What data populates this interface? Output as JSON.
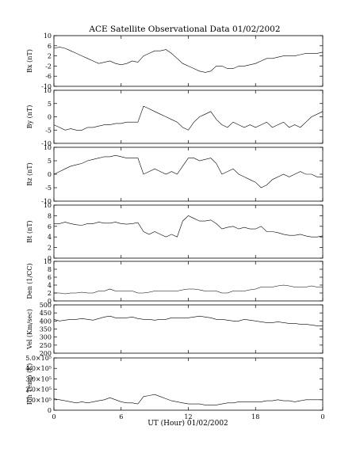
{
  "chart_data": {
    "type": "line",
    "title": "ACE Satellite Observational Data   01/02/2002",
    "xlabel": "UT (Hour)   01/02/2002",
    "x_ticks": [
      "0",
      "6",
      "12",
      "18",
      "0"
    ],
    "xlim": [
      0,
      24
    ],
    "panels": [
      {
        "ylabel": "Bx (nT)",
        "ylim": [
          -10,
          10
        ],
        "y_ticks": [
          "10",
          "6",
          "2",
          "-2",
          "-6",
          "-10"
        ],
        "x": [
          0,
          0.5,
          1,
          1.5,
          2,
          2.5,
          3,
          3.5,
          4,
          4.5,
          5,
          5.5,
          6,
          6.5,
          7,
          7.5,
          8,
          8.5,
          9,
          9.5,
          10,
          10.5,
          11,
          11.5,
          12,
          12.5,
          13,
          13.5,
          14,
          14.5,
          15,
          15.5,
          16,
          16.5,
          17,
          17.5,
          18,
          18.5,
          19,
          19.5,
          20,
          20.5,
          21,
          21.5,
          22,
          22.5,
          23,
          23.5,
          24
        ],
        "values": [
          5,
          5.5,
          5,
          4,
          3,
          2,
          1,
          0,
          -1,
          -0.5,
          0,
          -1,
          -1.5,
          -1,
          0,
          -0.5,
          2,
          3,
          4,
          4,
          4.5,
          3,
          1,
          -1,
          -2,
          -3,
          -4,
          -4.5,
          -4,
          -2,
          -2,
          -3,
          -3,
          -2,
          -2,
          -1.5,
          -1,
          0,
          1,
          1,
          1.5,
          2,
          2,
          2,
          2.5,
          3,
          3,
          3,
          3.5
        ]
      },
      {
        "ylabel": "By (nT)",
        "ylim": [
          -10,
          10
        ],
        "y_ticks": [
          "10",
          "5",
          "0",
          "-5",
          "-10"
        ],
        "x": [
          0,
          0.5,
          1,
          1.5,
          2,
          2.5,
          3,
          3.5,
          4,
          4.5,
          5,
          5.5,
          6,
          6.5,
          7,
          7.5,
          8,
          8.5,
          9,
          9.5,
          10,
          10.5,
          11,
          11.5,
          12,
          12.5,
          13,
          13.5,
          14,
          14.5,
          15,
          15.5,
          16,
          16.5,
          17,
          17.5,
          18,
          18.5,
          19,
          19.5,
          20,
          20.5,
          21,
          21.5,
          22,
          22.5,
          23,
          23.5,
          24
        ],
        "values": [
          -3,
          -4,
          -5,
          -4.5,
          -5,
          -5,
          -4,
          -4,
          -3.5,
          -3,
          -3,
          -2.5,
          -2.5,
          -2,
          -2,
          -2,
          4,
          3,
          2,
          1,
          0,
          -1,
          -2,
          -4,
          -5,
          -2,
          0,
          1,
          2,
          -1,
          -3,
          -4,
          -2,
          -3,
          -4,
          -3,
          -4,
          -3,
          -2,
          -4,
          -3,
          -2,
          -4,
          -3,
          -4,
          -2,
          0,
          1,
          2
        ]
      },
      {
        "ylabel": "Bz (nT)",
        "ylim": [
          -10,
          10
        ],
        "y_ticks": [
          "10",
          "5",
          "0",
          "-5",
          "-10"
        ],
        "x": [
          0,
          0.5,
          1,
          1.5,
          2,
          2.5,
          3,
          3.5,
          4,
          4.5,
          5,
          5.5,
          6,
          6.5,
          7,
          7.5,
          8,
          8.5,
          9,
          9.5,
          10,
          10.5,
          11,
          11.5,
          12,
          12.5,
          13,
          13.5,
          14,
          14.5,
          15,
          15.5,
          16,
          16.5,
          17,
          17.5,
          18,
          18.5,
          19,
          19.5,
          20,
          20.5,
          21,
          21.5,
          22,
          22.5,
          23,
          23.5,
          24
        ],
        "values": [
          0,
          1,
          2,
          3,
          3.5,
          4,
          5,
          5.5,
          6,
          6.5,
          6.5,
          7,
          6.5,
          6,
          6,
          6,
          0,
          1,
          2,
          1,
          0,
          1,
          0,
          3,
          6,
          6,
          5,
          5.5,
          6,
          4,
          0,
          1,
          2,
          0,
          -1,
          -2,
          -3,
          -5,
          -4,
          -2,
          -1,
          0,
          -1,
          0,
          1,
          0,
          0,
          -1,
          -1
        ]
      },
      {
        "ylabel": "Bt (nT)",
        "ylim": [
          0,
          10
        ],
        "y_ticks": [
          "10",
          "8",
          "6",
          "4",
          "2",
          "0"
        ],
        "x": [
          0,
          0.5,
          1,
          1.5,
          2,
          2.5,
          3,
          3.5,
          4,
          4.5,
          5,
          5.5,
          6,
          6.5,
          7,
          7.5,
          8,
          8.5,
          9,
          9.5,
          10,
          10.5,
          11,
          11.5,
          12,
          12.5,
          13,
          13.5,
          14,
          14.5,
          15,
          15.5,
          16,
          16.5,
          17,
          17.5,
          18,
          18.5,
          19,
          19.5,
          20,
          20.5,
          21,
          21.5,
          22,
          22.5,
          23,
          23.5,
          24
        ],
        "values": [
          6.5,
          6.5,
          6.8,
          6.5,
          6.3,
          6.2,
          6.5,
          6.5,
          6.8,
          6.6,
          6.6,
          6.8,
          6.5,
          6.4,
          6.5,
          6.7,
          5,
          4.5,
          5,
          4.5,
          4,
          4.5,
          4,
          7,
          8,
          7.5,
          7,
          7,
          7.2,
          6.5,
          5.5,
          5.8,
          6,
          5.5,
          5.8,
          5.5,
          5.5,
          6,
          5,
          5,
          4.8,
          4.5,
          4.3,
          4.3,
          4.5,
          4.2,
          4,
          4,
          4.2
        ]
      },
      {
        "ylabel": "Den (1/CC)",
        "ylim": [
          0,
          10
        ],
        "y_ticks": [
          "10",
          "8",
          "6",
          "4",
          "2",
          "0"
        ],
        "x": [
          0,
          0.5,
          1,
          1.5,
          2,
          2.5,
          3,
          3.5,
          4,
          4.5,
          5,
          5.5,
          6,
          6.5,
          7,
          7.5,
          8,
          8.5,
          9,
          9.5,
          10,
          10.5,
          11,
          11.5,
          12,
          12.5,
          13,
          13.5,
          14,
          14.5,
          15,
          15.5,
          16,
          16.5,
          17,
          17.5,
          18,
          18.5,
          19,
          19.5,
          20,
          20.5,
          21,
          21.5,
          22,
          22.5,
          23,
          23.5,
          24
        ],
        "values": [
          2,
          2,
          1.8,
          2,
          2,
          2.2,
          2,
          2,
          2.5,
          2.5,
          3,
          2.5,
          2.5,
          2.5,
          2.5,
          2,
          2,
          2.2,
          2.5,
          2.5,
          2.5,
          2.5,
          2.5,
          2.8,
          3,
          3,
          2.8,
          2.5,
          2.5,
          2.5,
          2,
          2,
          2.5,
          2.5,
          2.5,
          2.8,
          3,
          3.5,
          3.5,
          3.5,
          3.8,
          4,
          3.8,
          3.5,
          3.5,
          3.5,
          3.8,
          3.5,
          3.5
        ]
      },
      {
        "ylabel": "Vel (Km/sec)",
        "ylim": [
          200,
          500
        ],
        "y_ticks": [
          "500",
          "450",
          "400",
          "350",
          "300",
          "250",
          "200"
        ],
        "x": [
          0,
          0.5,
          1,
          1.5,
          2,
          2.5,
          3,
          3.5,
          4,
          4.5,
          5,
          5.5,
          6,
          6.5,
          7,
          7.5,
          8,
          8.5,
          9,
          9.5,
          10,
          10.5,
          11,
          11.5,
          12,
          12.5,
          13,
          13.5,
          14,
          14.5,
          15,
          15.5,
          16,
          16.5,
          17,
          17.5,
          18,
          18.5,
          19,
          19.5,
          20,
          20.5,
          21,
          21.5,
          22,
          22.5,
          23,
          23.5,
          24
        ],
        "values": [
          410,
          400,
          405,
          410,
          410,
          415,
          410,
          405,
          415,
          425,
          430,
          420,
          420,
          420,
          425,
          415,
          410,
          410,
          405,
          410,
          410,
          420,
          420,
          420,
          420,
          425,
          430,
          425,
          420,
          410,
          410,
          405,
          400,
          400,
          410,
          405,
          400,
          395,
          390,
          390,
          395,
          390,
          385,
          385,
          380,
          380,
          375,
          370,
          370
        ]
      },
      {
        "ylabel": "Ion Temp (K)",
        "ylim": [
          0,
          500000
        ],
        "y_ticks": [
          "5.0×10⁵",
          "4.0×10⁵",
          "3.0×10⁵",
          "2.0×10⁵",
          "1.0×10⁵",
          "0"
        ],
        "x": [
          0,
          0.5,
          1,
          1.5,
          2,
          2.5,
          3,
          3.5,
          4,
          4.5,
          5,
          5.5,
          6,
          6.5,
          7,
          7.5,
          8,
          8.5,
          9,
          9.5,
          10,
          10.5,
          11,
          11.5,
          12,
          12.5,
          13,
          13.5,
          14,
          14.5,
          15,
          15.5,
          16,
          16.5,
          17,
          17.5,
          18,
          18.5,
          19,
          19.5,
          20,
          20.5,
          21,
          21.5,
          22,
          22.5,
          23,
          23.5,
          24
        ],
        "values": [
          110000,
          100000,
          90000,
          80000,
          70000,
          80000,
          70000,
          80000,
          90000,
          100000,
          120000,
          100000,
          80000,
          70000,
          70000,
          60000,
          130000,
          140000,
          150000,
          130000,
          110000,
          90000,
          80000,
          70000,
          60000,
          60000,
          60000,
          50000,
          50000,
          50000,
          60000,
          70000,
          70000,
          80000,
          80000,
          80000,
          80000,
          80000,
          90000,
          90000,
          100000,
          90000,
          90000,
          80000,
          90000,
          100000,
          100000,
          100000,
          100000
        ]
      }
    ]
  }
}
